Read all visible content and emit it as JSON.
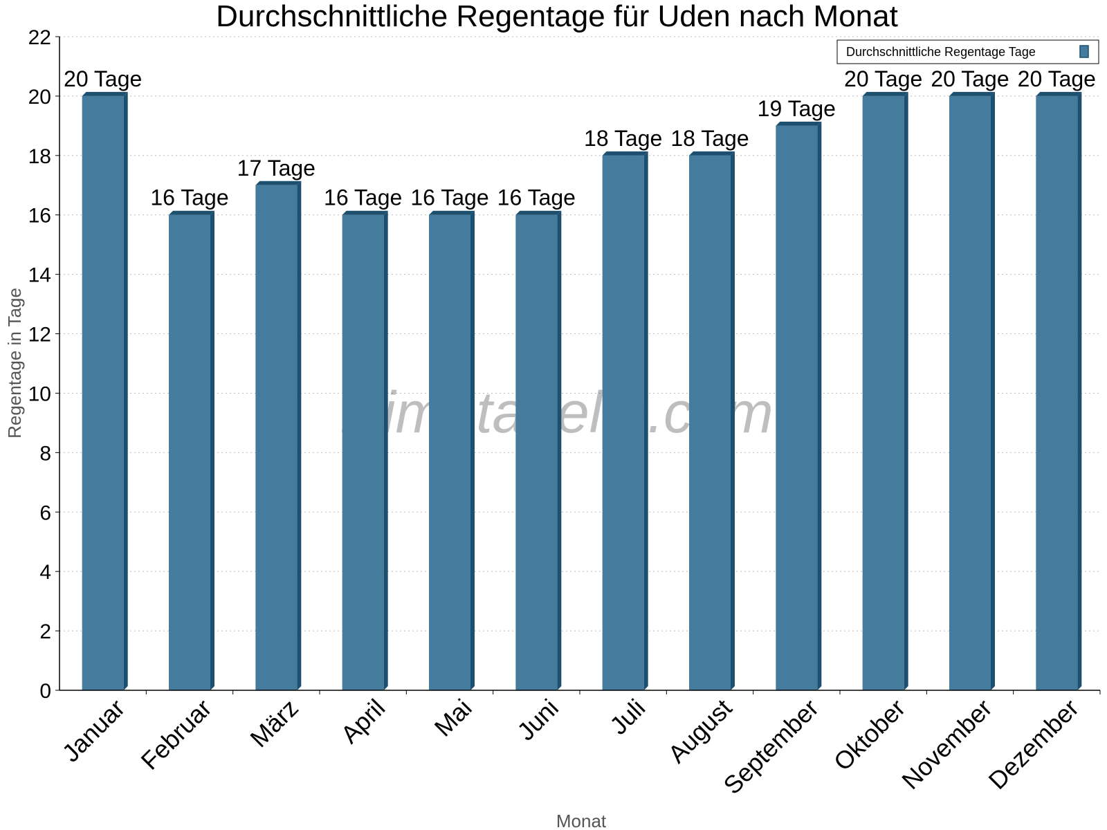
{
  "chart_data": {
    "type": "bar",
    "title": "Durchschnittliche Regentage für Uden nach Monat",
    "xlabel": "Monat",
    "ylabel": "Regentage in Tage",
    "ylim": [
      0,
      22
    ],
    "yticks": [
      0,
      2,
      4,
      6,
      8,
      10,
      12,
      14,
      16,
      18,
      20,
      22
    ],
    "grid": true,
    "legend_position": "top-right",
    "categories": [
      "Januar",
      "Februar",
      "März",
      "April",
      "Mai",
      "Juni",
      "Juli",
      "August",
      "September",
      "Oktober",
      "November",
      "Dezember"
    ],
    "series": [
      {
        "name": "Durchschnittliche Regentage Tage",
        "values": [
          20,
          16,
          17,
          16,
          16,
          16,
          18,
          18,
          19,
          20,
          20,
          20
        ],
        "labels": [
          "20 Tage",
          "16 Tage",
          "17 Tage",
          "16 Tage",
          "16 Tage",
          "16 Tage",
          "18 Tage",
          "18 Tage",
          "19 Tage",
          "20 Tage",
          "20 Tage",
          "20 Tage"
        ],
        "color": "#457B9D",
        "dark_color": "#1D4F6E"
      }
    ]
  },
  "watermark": "klimatabelle.com"
}
